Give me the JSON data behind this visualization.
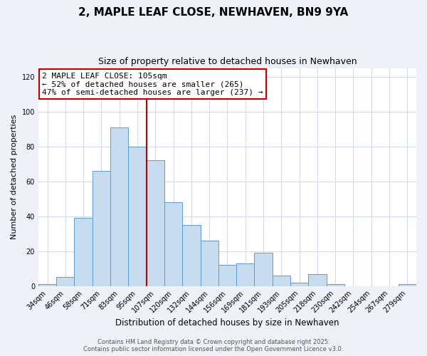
{
  "title": "2, MAPLE LEAF CLOSE, NEWHAVEN, BN9 9YA",
  "subtitle": "Size of property relative to detached houses in Newhaven",
  "xlabel": "Distribution of detached houses by size in Newhaven",
  "ylabel": "Number of detached properties",
  "bar_labels": [
    "34sqm",
    "46sqm",
    "58sqm",
    "71sqm",
    "83sqm",
    "95sqm",
    "107sqm",
    "120sqm",
    "132sqm",
    "144sqm",
    "156sqm",
    "169sqm",
    "181sqm",
    "193sqm",
    "205sqm",
    "218sqm",
    "230sqm",
    "242sqm",
    "254sqm",
    "267sqm",
    "279sqm"
  ],
  "bar_values": [
    1,
    5,
    39,
    66,
    91,
    80,
    72,
    48,
    35,
    26,
    12,
    13,
    19,
    6,
    2,
    7,
    1,
    0,
    0,
    0,
    1
  ],
  "bar_color": "#c8dcf0",
  "bar_edge_color": "#5b9bd5",
  "vline_color": "#c00000",
  "annotation_line1": "2 MAPLE LEAF CLOSE: 105sqm",
  "annotation_line2": "← 52% of detached houses are smaller (265)",
  "annotation_line3": "47% of semi-detached houses are larger (237) →",
  "annotation_box_color": "white",
  "annotation_box_edge": "#c00000",
  "ylim": [
    0,
    125
  ],
  "yticks": [
    0,
    20,
    40,
    60,
    80,
    100,
    120
  ],
  "footer1": "Contains HM Land Registry data © Crown copyright and database right 2025.",
  "footer2": "Contains public sector information licensed under the Open Government Licence v3.0.",
  "bg_color": "#eef2f8",
  "plot_bg_color": "#ffffff",
  "grid_color": "#d0d8e8",
  "title_fontsize": 11,
  "subtitle_fontsize": 9,
  "xlabel_fontsize": 8.5,
  "ylabel_fontsize": 8,
  "tick_fontsize": 7,
  "annotation_fontsize": 8,
  "footer_fontsize": 6
}
